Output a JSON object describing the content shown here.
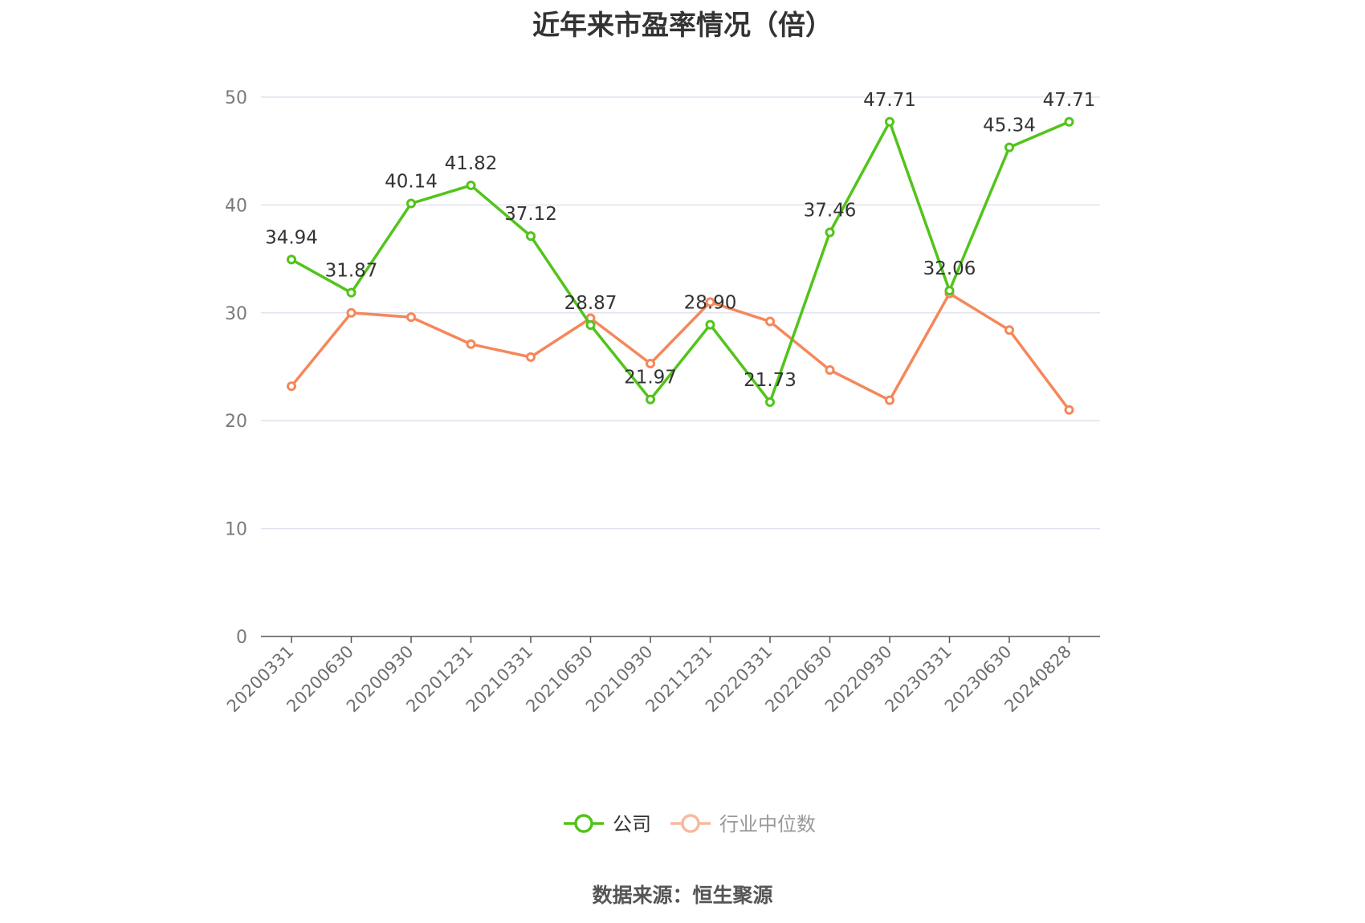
{
  "title": "近年来市盈率情况（倍）",
  "source": "数据来源：恒生聚源",
  "colors": {
    "company": "#52c41a",
    "industry": "#f5875a",
    "grid": "#e0e3ef",
    "axis": "#555555"
  },
  "chart_data": {
    "type": "line",
    "title": "近年来市盈率情况（倍）",
    "xlabel": "",
    "ylabel": "",
    "ylim": [
      0,
      50
    ],
    "yticks": [
      0,
      10,
      20,
      30,
      40,
      50
    ],
    "grid": true,
    "legend_position": "bottom-center",
    "categories": [
      "20200331",
      "20200630",
      "20200930",
      "20201231",
      "20210331",
      "20210630",
      "20210930",
      "20211231",
      "20220331",
      "20220630",
      "20220930",
      "20230331",
      "20230630",
      "20240828"
    ],
    "series": [
      {
        "name": "公司",
        "color": "#52c41a",
        "values": [
          34.94,
          31.87,
          40.14,
          41.82,
          37.12,
          28.87,
          21.97,
          28.9,
          21.73,
          37.46,
          47.71,
          32.06,
          45.34,
          47.71
        ],
        "labels": [
          "34.94",
          "31.87",
          "40.14",
          "41.82",
          "37.12",
          "28.87",
          "21.97",
          "28.90",
          "21.73",
          "37.46",
          "47.71",
          "32.06",
          "45.34",
          "47.71"
        ]
      },
      {
        "name": "行业中位数",
        "color": "#f5875a",
        "values": [
          23.2,
          30.0,
          29.6,
          27.1,
          25.9,
          29.5,
          25.3,
          31.0,
          29.2,
          24.7,
          21.9,
          31.8,
          28.4,
          21.0
        ]
      }
    ]
  }
}
